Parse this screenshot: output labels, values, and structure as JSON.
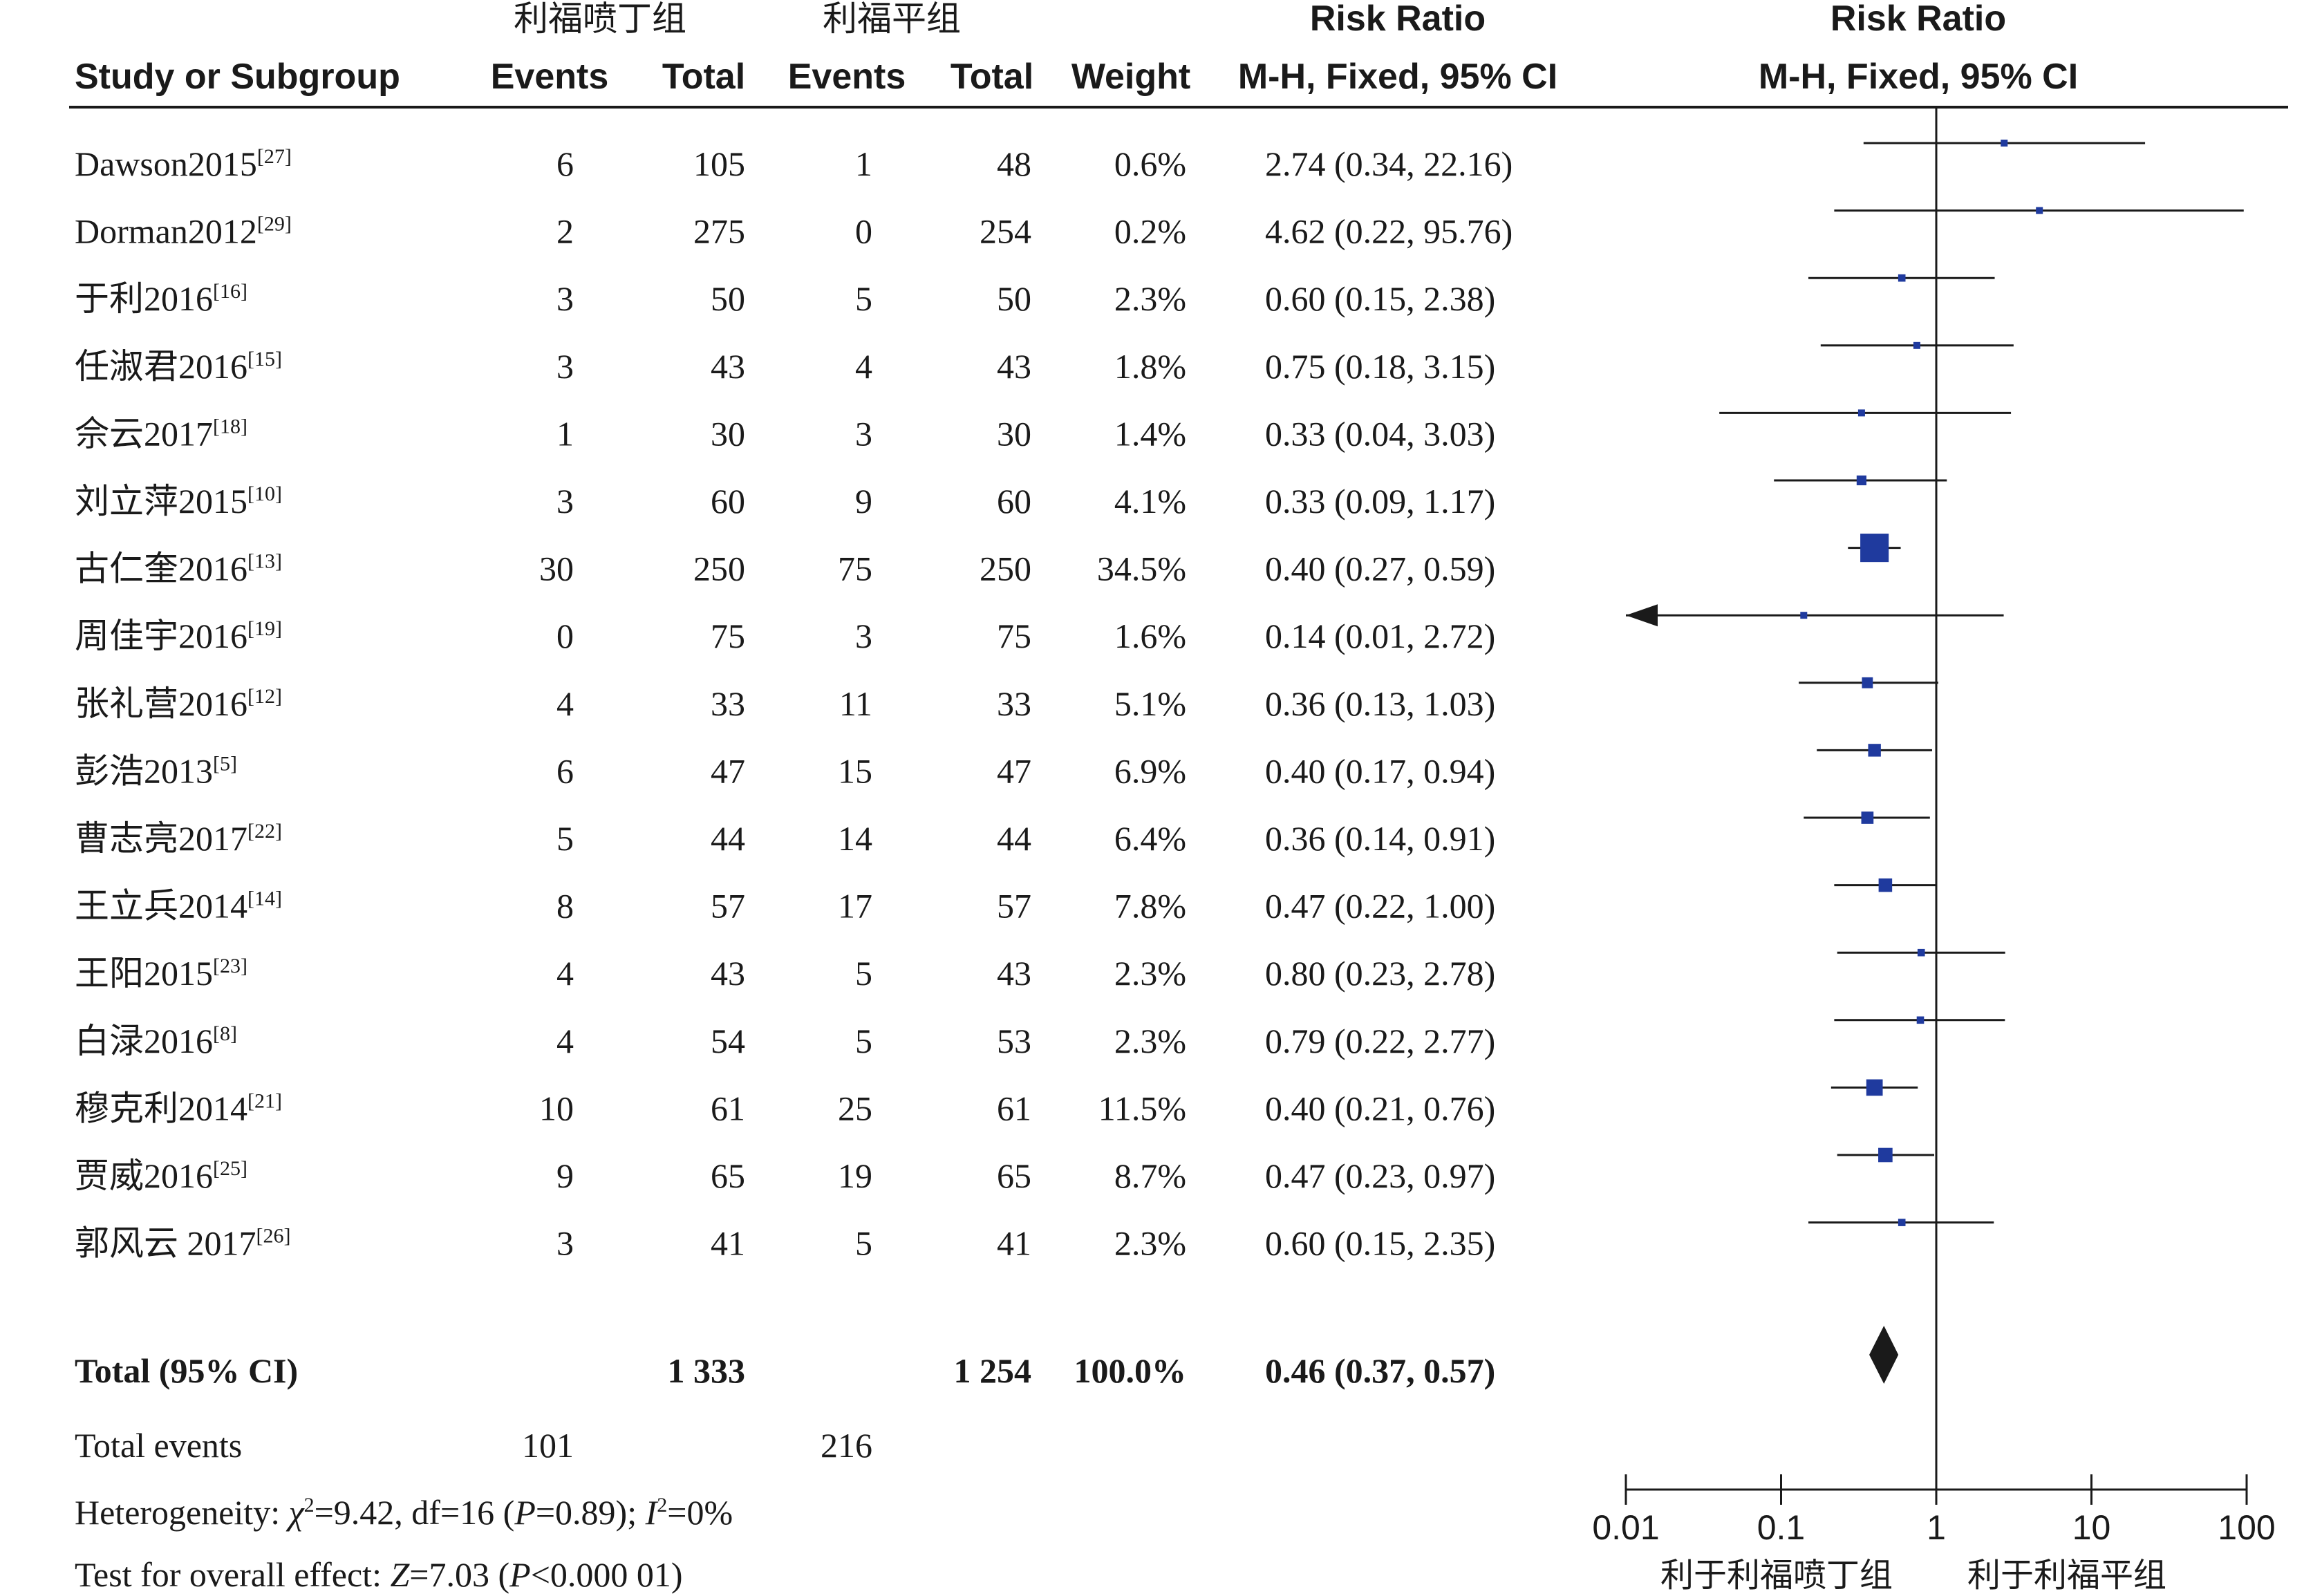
{
  "headers": {
    "group1": "利福喷丁组",
    "group2": "利福平组",
    "risk_ratio_table": "Risk Ratio",
    "risk_ratio_plot": "Risk Ratio",
    "study": "Study or Subgroup",
    "events1": "Events",
    "total1": "Total",
    "events2": "Events",
    "total2": "Total",
    "weight": "Weight",
    "method_table": "M-H, Fixed, 95% CI",
    "method_plot": "M-H, Fixed, 95% CI"
  },
  "studies": [
    {
      "name": "Dawson2015",
      "ref": "[27]",
      "e1": "6",
      "n1": "105",
      "e2": "1",
      "n2": "48",
      "weight": "0.6%",
      "ci_text": "2.74 (0.34, 22.16)"
    },
    {
      "name": "Dorman2012",
      "ref": "[29]",
      "e1": "2",
      "n1": "275",
      "e2": "0",
      "n2": "254",
      "weight": "0.2%",
      "ci_text": "4.62 (0.22, 95.76)"
    },
    {
      "name": "于利2016",
      "ref": "[16]",
      "e1": "3",
      "n1": "50",
      "e2": "5",
      "n2": "50",
      "weight": "2.3%",
      "ci_text": "0.60 (0.15, 2.38)"
    },
    {
      "name": "任淑君2016",
      "ref": "[15]",
      "e1": "3",
      "n1": "43",
      "e2": "4",
      "n2": "43",
      "weight": "1.8%",
      "ci_text": "0.75 (0.18, 3.15)"
    },
    {
      "name": "佘云2017",
      "ref": "[18]",
      "e1": "1",
      "n1": "30",
      "e2": "3",
      "n2": "30",
      "weight": "1.4%",
      "ci_text": "0.33 (0.04, 3.03)"
    },
    {
      "name": "刘立萍2015",
      "ref": "[10]",
      "e1": "3",
      "n1": "60",
      "e2": "9",
      "n2": "60",
      "weight": "4.1%",
      "ci_text": "0.33 (0.09, 1.17)"
    },
    {
      "name": "古仁奎2016",
      "ref": "[13]",
      "e1": "30",
      "n1": "250",
      "e2": "75",
      "n2": "250",
      "weight": "34.5%",
      "ci_text": "0.40 (0.27, 0.59)"
    },
    {
      "name": "周佳宇2016",
      "ref": "[19]",
      "e1": "0",
      "n1": "75",
      "e2": "3",
      "n2": "75",
      "weight": "1.6%",
      "ci_text": "0.14 (0.01, 2.72)"
    },
    {
      "name": "张礼营2016",
      "ref": "[12]",
      "e1": "4",
      "n1": "33",
      "e2": "11",
      "n2": "33",
      "weight": "5.1%",
      "ci_text": "0.36 (0.13, 1.03)"
    },
    {
      "name": "彭浩2013",
      "ref": "[5]",
      "e1": "6",
      "n1": "47",
      "e2": "15",
      "n2": "47",
      "weight": "6.9%",
      "ci_text": "0.40 (0.17, 0.94)"
    },
    {
      "name": "曹志亮2017",
      "ref": "[22]",
      "e1": "5",
      "n1": "44",
      "e2": "14",
      "n2": "44",
      "weight": "6.4%",
      "ci_text": "0.36 (0.14, 0.91)"
    },
    {
      "name": "王立兵2014",
      "ref": "[14]",
      "e1": "8",
      "n1": "57",
      "e2": "17",
      "n2": "57",
      "weight": "7.8%",
      "ci_text": "0.47 (0.22, 1.00)"
    },
    {
      "name": "王阳2015",
      "ref": "[23]",
      "e1": "4",
      "n1": "43",
      "e2": "5",
      "n2": "43",
      "weight": "2.3%",
      "ci_text": "0.80 (0.23, 2.78)"
    },
    {
      "name": "白渌2016",
      "ref": "[8]",
      "e1": "4",
      "n1": "54",
      "e2": "5",
      "n2": "53",
      "weight": "2.3%",
      "ci_text": "0.79 (0.22, 2.77)"
    },
    {
      "name": "穆克利2014",
      "ref": "[21]",
      "e1": "10",
      "n1": "61",
      "e2": "25",
      "n2": "61",
      "weight": "11.5%",
      "ci_text": "0.40 (0.21, 0.76)"
    },
    {
      "name": "贾威2016",
      "ref": "[25]",
      "e1": "9",
      "n1": "65",
      "e2": "19",
      "n2": "65",
      "weight": "8.7%",
      "ci_text": "0.47 (0.23, 0.97)"
    },
    {
      "name": "郭风云 2017",
      "ref": "[26]",
      "e1": "3",
      "n1": "41",
      "e2": "5",
      "n2": "41",
      "weight": "2.3%",
      "ci_text": "0.60 (0.15, 2.35)"
    }
  ],
  "total": {
    "label": "Total (95% CI)",
    "n1": "1 333",
    "n2": "1 254",
    "weight": "100.0%",
    "ci_text": "0.46 (0.37, 0.57)"
  },
  "total_events": {
    "label": "Total events",
    "e1": "101",
    "e2": "216"
  },
  "heterogeneity": {
    "prefix": "Heterogeneity: ",
    "chi_sym": "χ",
    "chi_rest": "=9.42, df=16 (",
    "p_sym": "P",
    "p_rest": "=0.89); ",
    "i_sym": "I",
    "i_rest": "=0%"
  },
  "overall_effect": {
    "prefix": "Test for overall effect: ",
    "z_sym": "Z",
    "z_rest": "=7.03 (",
    "p_sym": "P",
    "p_rest": "<0.000 01)"
  },
  "favours": {
    "left": "利于利福喷丁组",
    "right": "利于利福平组"
  },
  "colors": {
    "marker": "#1f3a9e",
    "text": "#1a1a1a",
    "diamond": "#1a1a1a"
  },
  "chart_data": {
    "type": "forest",
    "x_scale": "log",
    "xlim": [
      0.01,
      100
    ],
    "x_ticks": [
      "0.01",
      "0.1",
      "1",
      "10",
      "100"
    ],
    "null_line": 1,
    "estimates": [
      {
        "rr": 2.74,
        "lo": 0.34,
        "hi": 22.16,
        "weight": 0.6
      },
      {
        "rr": 4.62,
        "lo": 0.22,
        "hi": 95.76,
        "weight": 0.2
      },
      {
        "rr": 0.6,
        "lo": 0.15,
        "hi": 2.38,
        "weight": 2.3
      },
      {
        "rr": 0.75,
        "lo": 0.18,
        "hi": 3.15,
        "weight": 1.8
      },
      {
        "rr": 0.33,
        "lo": 0.04,
        "hi": 3.03,
        "weight": 1.4
      },
      {
        "rr": 0.33,
        "lo": 0.09,
        "hi": 1.17,
        "weight": 4.1
      },
      {
        "rr": 0.4,
        "lo": 0.27,
        "hi": 0.59,
        "weight": 34.5
      },
      {
        "rr": 0.14,
        "lo": 0.01,
        "hi": 2.72,
        "weight": 1.6
      },
      {
        "rr": 0.36,
        "lo": 0.13,
        "hi": 1.03,
        "weight": 5.1
      },
      {
        "rr": 0.4,
        "lo": 0.17,
        "hi": 0.94,
        "weight": 6.9
      },
      {
        "rr": 0.36,
        "lo": 0.14,
        "hi": 0.91,
        "weight": 6.4
      },
      {
        "rr": 0.47,
        "lo": 0.22,
        "hi": 1.0,
        "weight": 7.8
      },
      {
        "rr": 0.8,
        "lo": 0.23,
        "hi": 2.78,
        "weight": 2.3
      },
      {
        "rr": 0.79,
        "lo": 0.22,
        "hi": 2.77,
        "weight": 2.3
      },
      {
        "rr": 0.4,
        "lo": 0.21,
        "hi": 0.76,
        "weight": 11.5
      },
      {
        "rr": 0.47,
        "lo": 0.23,
        "hi": 0.97,
        "weight": 8.7
      },
      {
        "rr": 0.6,
        "lo": 0.15,
        "hi": 2.35,
        "weight": 2.3
      }
    ],
    "pooled": {
      "rr": 0.46,
      "lo": 0.37,
      "hi": 0.57
    }
  }
}
